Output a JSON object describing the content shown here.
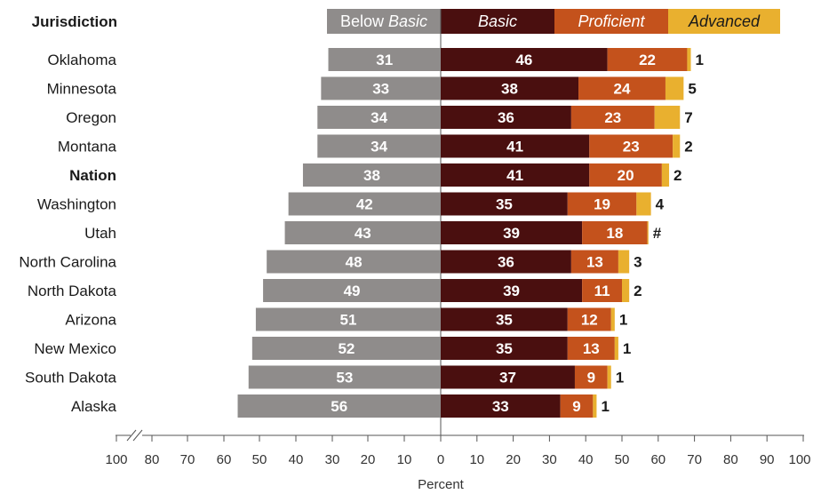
{
  "chart_data": {
    "type": "bar",
    "stacked": true,
    "diverging": true,
    "header_label": "Jurisdiction",
    "legend": {
      "below_basic": "Below",
      "below_basic_italic": "Basic",
      "basic": "Basic",
      "proficient": "Proficient",
      "advanced": "Advanced"
    },
    "colors": {
      "below_basic": "#8f8c8b",
      "basic": "#4a0f0f",
      "proficient": "#c4521c",
      "advanced": "#e9b02f"
    },
    "categories": [
      "Oklahoma",
      "Minnesota",
      "Oregon",
      "Montana",
      "Nation",
      "Washington",
      "Utah",
      "North Carolina",
      "North Dakota",
      "Arizona",
      "New Mexico",
      "South Dakota",
      "Alaska"
    ],
    "bold_categories": [
      "Nation"
    ],
    "series": [
      {
        "name": "Below Basic",
        "values": [
          31,
          33,
          34,
          34,
          38,
          42,
          43,
          48,
          49,
          51,
          52,
          53,
          56
        ]
      },
      {
        "name": "Basic",
        "values": [
          46,
          38,
          36,
          41,
          41,
          35,
          39,
          36,
          39,
          35,
          35,
          37,
          33
        ]
      },
      {
        "name": "Proficient",
        "values": [
          22,
          24,
          23,
          23,
          20,
          19,
          18,
          13,
          11,
          12,
          13,
          9,
          9
        ]
      },
      {
        "name": "Advanced",
        "values": [
          1,
          5,
          7,
          2,
          2,
          4,
          0.3,
          3,
          2,
          1,
          1,
          1,
          1
        ]
      }
    ],
    "advanced_labels": [
      "1",
      "5",
      "7",
      "2",
      "2",
      "4",
      "#",
      "3",
      "2",
      "1",
      "1",
      "1",
      "1"
    ],
    "x_ticks_left": [
      "100",
      "80",
      "70",
      "60",
      "50",
      "40",
      "30",
      "20",
      "10"
    ],
    "x_ticks_right": [
      "0",
      "10",
      "20",
      "30",
      "40",
      "50",
      "60",
      "70",
      "80",
      "90",
      "100"
    ],
    "xlabel": "Percent",
    "xlim": [
      -100,
      100
    ],
    "axis_break": true
  }
}
